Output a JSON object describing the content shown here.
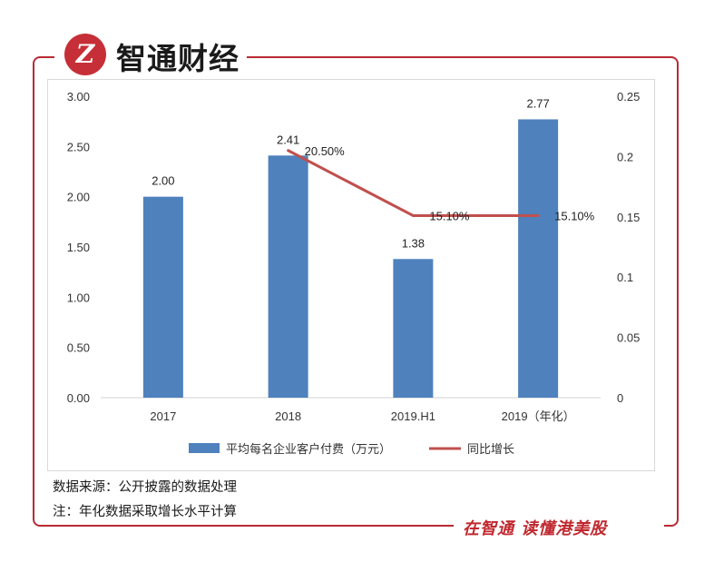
{
  "brand": {
    "name": "智通财经",
    "logo_glyph": "Z",
    "accent_color": "#b82a33"
  },
  "chart_data": {
    "type": "bar",
    "categories": [
      "2017",
      "2018",
      "2019.H1",
      "2019（年化）"
    ],
    "series": [
      {
        "name": "平均每名企业客户付费（万元）",
        "type": "bar",
        "axis": "left",
        "values": [
          2.0,
          2.41,
          1.38,
          2.77
        ],
        "labels": [
          "2.00",
          "2.41",
          "1.38",
          "2.77"
        ],
        "color": "#4f81bd"
      },
      {
        "name": "同比增长",
        "type": "line",
        "axis": "right",
        "values": [
          null,
          0.205,
          0.151,
          0.151
        ],
        "labels": [
          "",
          "20.50%",
          "15.10%",
          "15.10%"
        ],
        "color": "#c0504d"
      }
    ],
    "y_left": {
      "min": 0,
      "max": 3,
      "ticks": [
        "0.00",
        "0.50",
        "1.00",
        "1.50",
        "2.00",
        "2.50",
        "3.00"
      ]
    },
    "y_right": {
      "min": 0,
      "max": 0.25,
      "ticks": [
        "0",
        "0.05",
        "0.1",
        "0.15",
        "0.2",
        "0.25"
      ]
    },
    "legend_position": "bottom",
    "grid": false
  },
  "notes": {
    "source": "数据来源：公开披露的数据处理",
    "annualized": "注：年化数据采取增长水平计算"
  },
  "footer": {
    "slogan": "在智通 读懂港美股"
  }
}
